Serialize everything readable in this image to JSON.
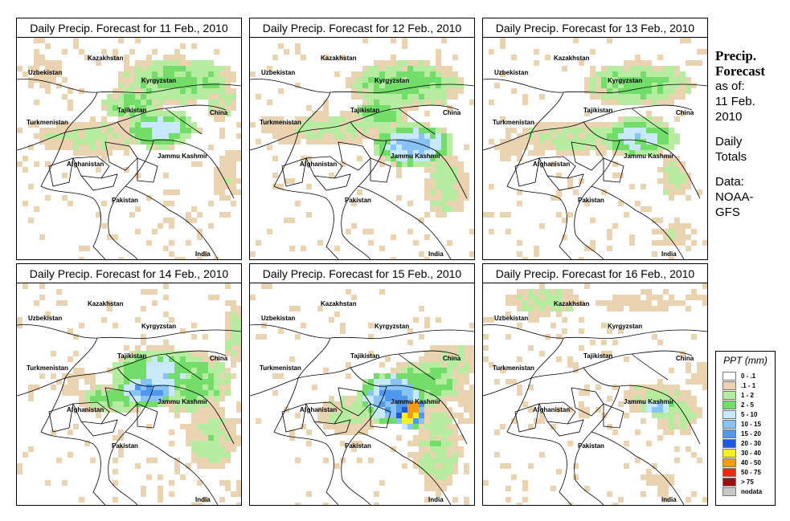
{
  "panels": [
    {
      "title": "Daily Precip. Forecast for  11 Feb., 2010"
    },
    {
      "title": "Daily Precip. Forecast for  12 Feb., 2010"
    },
    {
      "title": "Daily Precip. Forecast for  13 Feb., 2010"
    },
    {
      "title": "Daily Precip. Forecast for  14 Feb., 2010"
    },
    {
      "title": "Daily Precip. Forecast for  15 Feb., 2010"
    },
    {
      "title": "Daily Precip. Forecast for  16 Feb., 2010"
    }
  ],
  "country_labels": {
    "uzbekistan": "Uzbekistan",
    "kazakhstan": "Kazakhstan",
    "kyrgyzstan": "Kyrgyzstan",
    "tajikistan": "Tajikistan",
    "turkmenistan": "Turkmenistan",
    "china": "China",
    "afghanistan": "Afghanistan",
    "jammu_kashmir": "Jammu Kashmir",
    "pakistan": "Pakistan",
    "india": "India"
  },
  "side": {
    "heading_line1": "Precip.",
    "heading_line2": "Forecast",
    "asof_line1": "as of:",
    "asof_line2": "11 Feb.",
    "asof_line3": "2010",
    "totals_line1": "Daily",
    "totals_line2": "Totals",
    "data_line1": "Data:",
    "data_line2": "NOAA-",
    "data_line3": "GFS"
  },
  "legend": {
    "title": "PPT (mm)",
    "items": [
      {
        "label": "0 - .1",
        "color": "#ffffff"
      },
      {
        "label": ".1 - 1",
        "color": "#e9d3b0"
      },
      {
        "label": "1 - 2",
        "color": "#b6eca0"
      },
      {
        "label": "2 - 5",
        "color": "#72dd68"
      },
      {
        "label": "5 - 10",
        "color": "#c8e8fb"
      },
      {
        "label": "10 - 15",
        "color": "#87c4f5"
      },
      {
        "label": "15 - 20",
        "color": "#4f98ee"
      },
      {
        "label": "20 - 30",
        "color": "#1d58e0"
      },
      {
        "label": "30 - 40",
        "color": "#f5f023"
      },
      {
        "label": "40 - 50",
        "color": "#f59a13"
      },
      {
        "label": "50 - 75",
        "color": "#e82b10"
      },
      {
        "label": "> 75",
        "color": "#9a1010"
      },
      {
        "label": "nodata",
        "color": "#c8c8c8"
      }
    ]
  }
}
